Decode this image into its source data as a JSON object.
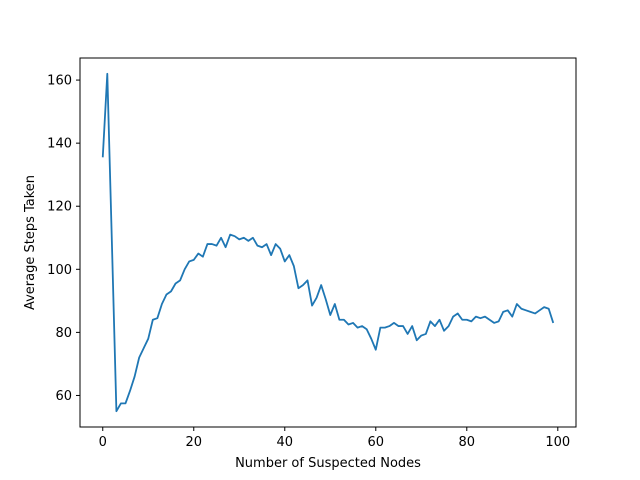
{
  "chart_data": {
    "type": "line",
    "title": "",
    "xlabel": "Number of Suspected Nodes",
    "ylabel": "Average Steps Taken",
    "xlim": [
      -5,
      104
    ],
    "ylim": [
      50,
      167
    ],
    "xticks": [
      0,
      20,
      40,
      60,
      80,
      100
    ],
    "yticks": [
      60,
      80,
      100,
      120,
      140,
      160
    ],
    "grid": false,
    "legend": "none",
    "colors": {
      "line": "#1f77b4",
      "axes": "#000000"
    },
    "series": [
      {
        "x": [
          0,
          1,
          2,
          3,
          4,
          5,
          6,
          7,
          8,
          9,
          10,
          11,
          12,
          13,
          14,
          15,
          16,
          17,
          18,
          19,
          20,
          21,
          22,
          23,
          24,
          25,
          26,
          27,
          28,
          29,
          30,
          31,
          32,
          33,
          34,
          35,
          36,
          37,
          38,
          39,
          40,
          41,
          42,
          43,
          44,
          45,
          46,
          47,
          48,
          49,
          50,
          51,
          52,
          53,
          54,
          55,
          56,
          57,
          58,
          59,
          60,
          61,
          62,
          63,
          64,
          65,
          66,
          67,
          68,
          69,
          70,
          71,
          72,
          73,
          74,
          75,
          76,
          77,
          78,
          79,
          80,
          81,
          82,
          83,
          84,
          85,
          86,
          87,
          88,
          89,
          90,
          91,
          92,
          93,
          94,
          95,
          96,
          97,
          98,
          99
        ],
        "values": [
          135.5,
          162,
          109,
          55,
          57.5,
          57.5,
          61.5,
          66,
          72,
          75,
          78,
          84,
          84.5,
          89,
          92,
          93,
          95.5,
          96.5,
          100,
          102.5,
          103,
          105,
          104,
          108,
          108,
          107.5,
          110,
          107,
          111,
          110.5,
          109.5,
          110,
          109,
          110,
          107.5,
          107,
          108,
          104.5,
          108,
          106.5,
          102.5,
          104.5,
          101,
          94,
          95,
          96.5,
          88.5,
          91,
          95,
          90.5,
          85.5,
          89,
          84,
          84,
          82.5,
          83,
          81.5,
          82,
          81,
          78,
          74.5,
          81.5,
          81.5,
          82,
          83,
          82,
          82,
          79.5,
          82,
          77.5,
          79,
          79.5,
          83.5,
          82,
          84,
          80.5,
          82,
          85,
          86,
          84,
          84,
          83.5,
          85,
          84.5,
          85,
          84,
          83,
          83.5,
          86.5,
          87,
          85,
          89,
          87.5,
          87,
          86.5,
          86,
          87,
          88,
          87.5,
          83
        ]
      }
    ]
  }
}
